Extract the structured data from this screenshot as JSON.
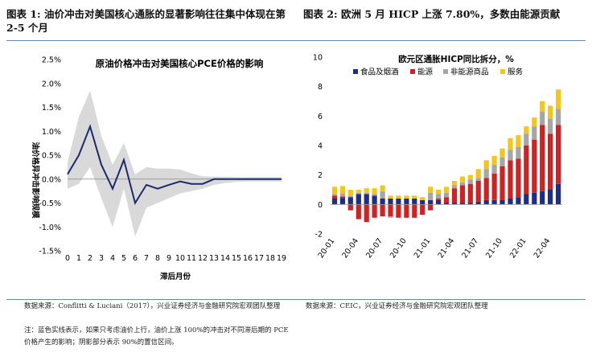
{
  "headers": {
    "left": "图表 1: 油价冲击对美国核心通胀的显著影响往往集中体现在第 2-5 个月",
    "right": "图表 2: 欧洲 5 月 HICP 上涨 7.80%，多数由能源贡献"
  },
  "sources": {
    "left": "数据来源：Conflitti & Luciani（2017），兴业证券经济与金融研究院宏观团队整理",
    "left_note": "注：蓝色实线表示，如果只考虑油价上行，油价上涨 100%的冲击对不同滞后期的 PCE 价格产生的影响；阴影部分表示 90%的置信区间。",
    "right": "数据来源：CEIC，兴业证券经济与金融研究院宏观团队整理"
  },
  "colors": {
    "rule": "#6b88b8",
    "line": "#1a2a6c",
    "band": "#d9d9d9",
    "food": "#1f2d8a",
    "energy": "#d42020",
    "core_goods": "#a6a6a6",
    "services": "#f5c518"
  },
  "chart_data": [
    {
      "type": "line",
      "title": "原油价格冲击对美国核心PCE价格的影响",
      "xlabel": "滞后月份",
      "ylabel": "油价格异冲击影响规模",
      "x": [
        0,
        1,
        2,
        3,
        4,
        5,
        6,
        7,
        8,
        9,
        10,
        11,
        12,
        13,
        14,
        15,
        16,
        17,
        18,
        19
      ],
      "ylim": [
        -1.5,
        2.5
      ],
      "yticks": [
        "2.5%",
        "2.0%",
        "1.5%",
        "1.0%",
        "0.5%",
        "0.0%",
        "-0.5%",
        "-1.0%",
        "-1.5%"
      ],
      "ytick_values": [
        2.5,
        2.0,
        1.5,
        1.0,
        0.5,
        0.0,
        -0.5,
        -1.0,
        -1.5
      ],
      "series": [
        {
          "values": [
            0.1,
            0.5,
            1.1,
            0.3,
            -0.2,
            0.4,
            -0.5,
            -0.12,
            -0.2,
            -0.12,
            -0.05,
            -0.1,
            -0.1,
            0.0,
            0.0,
            0.0,
            0.0,
            0.0,
            0.0,
            0.0
          ]
        }
      ],
      "band_upper": [
        0.35,
        1.3,
        1.85,
        0.9,
        0.3,
        0.75,
        0.1,
        0.25,
        0.22,
        0.22,
        0.2,
        0.12,
        0.06,
        0.05,
        0.05,
        0.04,
        0.04,
        0.04,
        0.04,
        0.04
      ],
      "band_lower": [
        -0.2,
        -0.1,
        0.25,
        -0.4,
        -1.0,
        -0.2,
        -1.2,
        -0.6,
        -0.5,
        -0.4,
        -0.3,
        -0.25,
        -0.2,
        -0.12,
        -0.08,
        -0.06,
        -0.05,
        -0.05,
        -0.05,
        -0.05
      ],
      "grid": false
    },
    {
      "type": "bar",
      "stacked": true,
      "title": "欧元区通胀HICP同比拆分，%",
      "legend_position": "top",
      "ylim": [
        -2,
        10
      ],
      "yticks": [
        10,
        8,
        6,
        4,
        2,
        0,
        -2
      ],
      "x_tick_labels": [
        "20-01",
        "20-04",
        "20-07",
        "20-10",
        "21-01",
        "21-04",
        "21-07",
        "21-10",
        "22-01",
        "22-04"
      ],
      "categories": [
        "20-01",
        "20-02",
        "20-03",
        "20-04",
        "20-05",
        "20-06",
        "20-07",
        "20-08",
        "20-09",
        "20-10",
        "20-11",
        "20-12",
        "21-01",
        "21-02",
        "21-03",
        "21-04",
        "21-05",
        "21-06",
        "21-07",
        "21-08",
        "21-09",
        "21-10",
        "21-11",
        "21-12",
        "22-01",
        "22-02",
        "22-03",
        "22-04",
        "22-05"
      ],
      "series": [
        {
          "name": "食品及烟酒",
          "values": [
            0.4,
            0.45,
            0.5,
            0.7,
            0.7,
            0.6,
            0.4,
            0.4,
            0.4,
            0.4,
            0.4,
            0.3,
            0.3,
            0.3,
            0.1,
            0.1,
            0.1,
            0.1,
            0.2,
            0.3,
            0.3,
            0.3,
            0.4,
            0.5,
            0.7,
            0.8,
            0.9,
            1.0,
            1.4
          ]
        },
        {
          "name": "能源",
          "values": [
            0.2,
            0.1,
            -0.4,
            -1.0,
            -1.2,
            -0.9,
            -0.8,
            -0.8,
            -0.9,
            -0.9,
            -0.9,
            -0.7,
            -0.4,
            0.1,
            0.4,
            1.0,
            1.2,
            1.3,
            1.4,
            1.5,
            1.8,
            2.3,
            2.6,
            2.6,
            3.3,
            3.6,
            4.5,
            3.8,
            4.0
          ]
        },
        {
          "name": "非能源商品",
          "values": [
            0.1,
            0.2,
            0.1,
            0.1,
            0.1,
            0.1,
            0.5,
            -0.1,
            0.0,
            0.0,
            0.0,
            0.0,
            0.5,
            0.3,
            0.3,
            0.2,
            0.2,
            0.3,
            0.2,
            0.6,
            0.6,
            0.6,
            0.7,
            0.8,
            0.8,
            0.9,
            0.9,
            1.0,
            1.1
          ]
        },
        {
          "name": "服务",
          "values": [
            0.5,
            0.5,
            0.4,
            0.2,
            0.3,
            0.4,
            0.4,
            0.2,
            0.2,
            0.2,
            0.2,
            0.2,
            0.4,
            0.3,
            0.4,
            0.3,
            0.4,
            0.3,
            0.6,
            0.6,
            0.6,
            0.6,
            0.8,
            0.8,
            0.5,
            0.6,
            0.7,
            0.9,
            1.3
          ]
        }
      ]
    }
  ]
}
